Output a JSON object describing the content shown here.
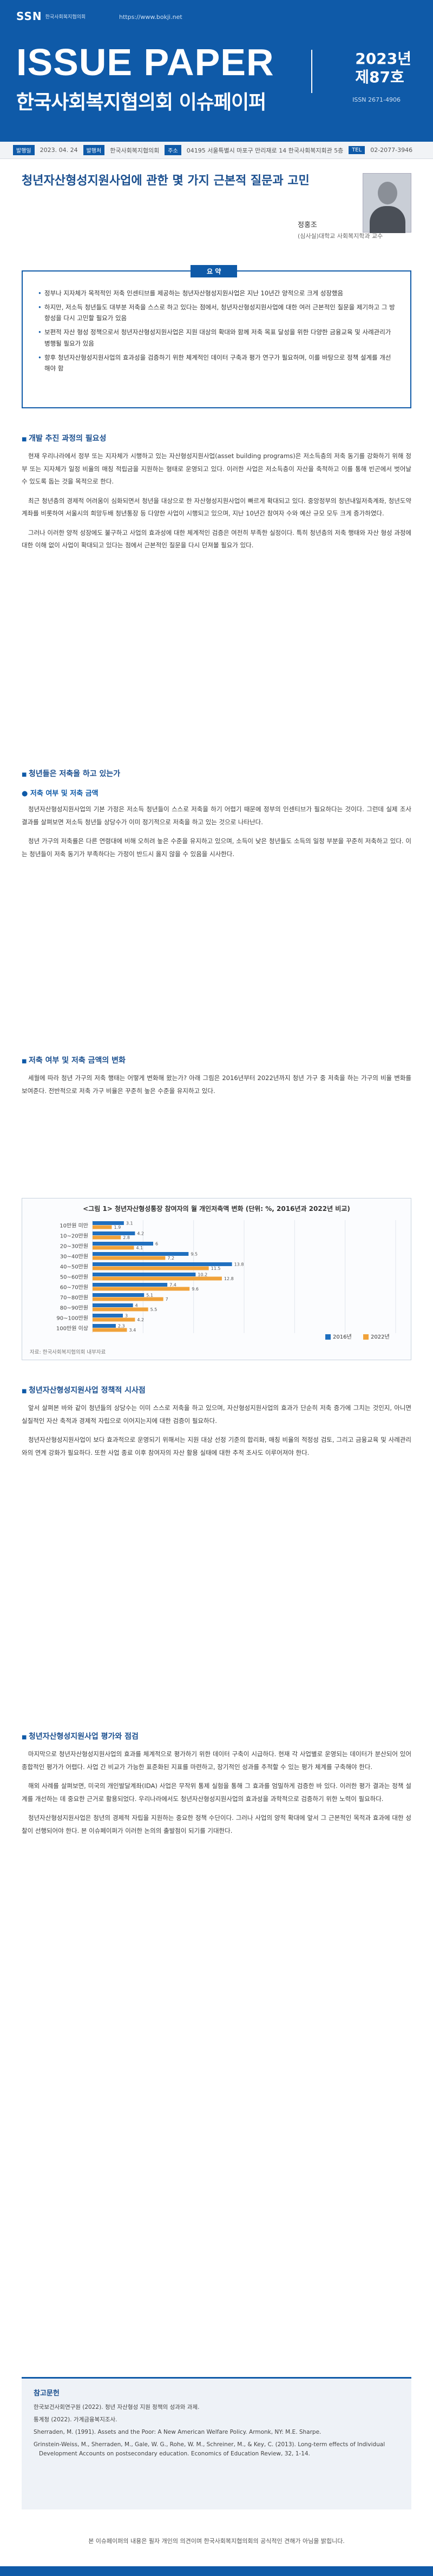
{
  "header": {
    "logo": "SSN",
    "logo_sub": "한국사회복지협의회",
    "url": "https://www.bokji.net",
    "title": "ISSUE PAPER",
    "subtitle": "한국사회복지협의회 이슈페이퍼",
    "year": "2023년",
    "issue": "제87호",
    "issn": "ISSN 2671-4906"
  },
  "meta": {
    "date_label": "발행일",
    "date": "2023. 04. 24",
    "publisher_label": "발행처",
    "publisher": "한국사회복지협의회",
    "address_label": "주소",
    "address": "04195 서울특별시 마포구 만리재로 14 한국사회복지회관 5층",
    "tel_label": "TEL",
    "tel": "02-2077-3946"
  },
  "article": {
    "title": "청년자산형성지원사업에 관한 몇 가지 근본적 질문과 고민",
    "author": "정홍조",
    "affiliation": "(심사실)대학교 사회복지학과 교수"
  },
  "summary": {
    "tab": "요 약",
    "items": [
      "정부나 지자체가 목적적인 저축 인센티브를 제공하는 청년자산형성지원사업은 지난 10년간 양적으로 크게 성장했음",
      "하지만, 저소득 청년들도 대부분 저축을 스스로 하고 있다는 점에서, 청년자산형성지원사업에 대한 여러 근본적인 질문을 제기하고 그 방향성을 다시 고민할 필요가 있음",
      "보편적 자산 형성 정책으로서 청년자산형성지원사업은 지원 대상의 확대와 함께 저축 목표 달성을 위한 다양한 금융교육 및 사례관리가 병행될 필요가 있음",
      "향후 청년자산형성지원사업의 효과성을 검증하기 위한 체계적인 데이터 구축과 평가 연구가 필요하며, 이를 바탕으로 정책 설계를 개선해야 함"
    ]
  },
  "sections": [
    {
      "heading": "개발 추진 과정의 필요성",
      "paragraphs": [
        "현재 우리나라에서 정부 또는 지자체가 시행하고 있는 자산형성지원사업(asset building programs)은 저소득층의 저축 동기를 강화하기 위해 정부 또는 지자체가 일정 비율의 매칭 적립금을 지원하는 형태로 운영되고 있다. 이러한 사업은 저소득층이 자산을 축적하고 이를 통해 빈곤에서 벗어날 수 있도록 돕는 것을 목적으로 한다.",
        "최근 청년층의 경제적 어려움이 심화되면서 청년을 대상으로 한 자산형성지원사업이 빠르게 확대되고 있다. 중앙정부의 청년내일저축계좌, 청년도약계좌를 비롯하여 서울시의 희망두배 청년통장 등 다양한 사업이 시행되고 있으며, 지난 10년간 참여자 수와 예산 규모 모두 크게 증가하였다.",
        "그러나 이러한 양적 성장에도 불구하고 사업의 효과성에 대한 체계적인 검증은 여전히 부족한 실정이다. 특히 청년층의 저축 행태와 자산 형성 과정에 대한 이해 없이 사업이 확대되고 있다는 점에서 근본적인 질문을 다시 던져볼 필요가 있다."
      ]
    },
    {
      "heading": "청년들은 저축을 하고 있는가",
      "sub": "● 저축 여부 및 저축 금액",
      "paragraphs": [
        "청년자산형성지원사업의 기본 가정은 저소득 청년들이 스스로 저축을 하기 어렵기 때문에 정부의 인센티브가 필요하다는 것이다. 그런데 실제 조사 결과를 살펴보면 저소득 청년들 상당수가 이미 정기적으로 저축을 하고 있는 것으로 나타난다.",
        "청년 가구의 저축률은 다른 연령대에 비해 오히려 높은 수준을 유지하고 있으며, 소득이 낮은 청년들도 소득의 일정 부분을 꾸준히 저축하고 있다. 이는 청년들이 저축 동기가 부족하다는 가정이 반드시 옳지 않을 수 있음을 시사한다."
      ]
    },
    {
      "heading": "저축 여부 및 저축 금액의 변화",
      "paragraphs": [
        "세월에 따라 청년 가구의 저축 행태는 어떻게 변화해 왔는가? 아래 그림은 2016년부터 2022년까지 청년 가구 중 저축을 하는 가구의 비율 변화를 보여준다. 전반적으로 저축 가구 비율은 꾸준히 높은 수준을 유지하고 있다."
      ]
    }
  ],
  "chart_data": {
    "type": "bar",
    "title": "<그림 1> 청년자산형성통장 참여자의 월 개인저축액 변화 (단위: %, 2016년과 2022년 비교)",
    "categories": [
      "10만원 미만",
      "10~20만원",
      "20~30만원",
      "30~40만원",
      "40~50만원",
      "50~60만원",
      "60~70만원",
      "70~80만원",
      "80~90만원",
      "90~100만원",
      "100만원 이상"
    ],
    "series": [
      {
        "name": "2016년",
        "values": [
          3.1,
          4.2,
          6.0,
          9.5,
          13.8,
          10.2,
          7.4,
          5.1,
          4.0,
          3.0,
          2.3
        ]
      },
      {
        "name": "2022년",
        "values": [
          1.9,
          2.8,
          4.1,
          7.2,
          11.5,
          12.8,
          9.6,
          7.0,
          5.5,
          4.2,
          3.4
        ]
      }
    ],
    "xlim": [
      0,
      30
    ],
    "colors": [
      "#1f6fbf",
      "#f0a23a"
    ],
    "source": "자료: 한국사회복지협의회 내부자료"
  },
  "sections2": [
    {
      "heading": "청년자산형성지원사업 정책적 시사점",
      "paragraphs": [
        "앞서 살펴본 바와 같이 청년들의 상당수는 이미 스스로 저축을 하고 있으며, 자산형성지원사업의 효과가 단순히 저축 증가에 그치는 것인지, 아니면 실질적인 자산 축적과 경제적 자립으로 이어지는지에 대한 검증이 필요하다.",
        "청년자산형성지원사업이 보다 효과적으로 운영되기 위해서는 지원 대상 선정 기준의 합리화, 매칭 비율의 적정성 검토, 그리고 금융교육 및 사례관리와의 연계 강화가 필요하다. 또한 사업 종료 이후 참여자의 자산 활용 실태에 대한 추적 조사도 이루어져야 한다."
      ]
    },
    {
      "heading": "청년자산형성지원사업 평가와 점검",
      "paragraphs": [
        "마지막으로 청년자산형성지원사업의 효과를 체계적으로 평가하기 위한 데이터 구축이 시급하다. 현재 각 사업별로 운영되는 데이터가 분산되어 있어 종합적인 평가가 어렵다. 사업 간 비교가 가능한 표준화된 지표를 마련하고, 장기적인 성과를 추적할 수 있는 평가 체계를 구축해야 한다.",
        "해외 사례를 살펴보면, 미국의 개인발달계좌(IDA) 사업은 무작위 통제 실험을 통해 그 효과를 엄밀하게 검증한 바 있다. 이러한 평가 결과는 정책 설계를 개선하는 데 중요한 근거로 활용되었다. 우리나라에서도 청년자산형성지원사업의 효과성을 과학적으로 검증하기 위한 노력이 필요하다.",
        "청년자산형성지원사업은 청년의 경제적 자립을 지원하는 중요한 정책 수단이다. 그러나 사업의 양적 확대에 앞서 그 근본적인 목적과 효과에 대한 성찰이 선행되어야 한다. 본 이슈페이퍼가 이러한 논의의 출발점이 되기를 기대한다."
      ]
    }
  ],
  "references": {
    "title": "참고문헌",
    "items": [
      "한국보건사회연구원 (2022). 청년 자산형성 지원 정책의 성과와 과제.",
      "통계청 (2022). 가계금융복지조사.",
      "Sherraden, M. (1991). Assets and the Poor: A New American Welfare Policy. Armonk, NY: M.E. Sharpe.",
      "Grinstein-Weiss, M., Sherraden, M., Gale, W. G., Rohe, W. M., Schreiner, M., & Key, C. (2013). Long-term effects of Individual Development Accounts on postsecondary education. Economics of Education Review, 32, 1-14."
    ]
  },
  "footer": {
    "note": "본 이슈페이퍼의 내용은 필자 개인의 의견이며 한국사회복지협의회의 공식적인 견해가 아님을 밝힙니다."
  }
}
